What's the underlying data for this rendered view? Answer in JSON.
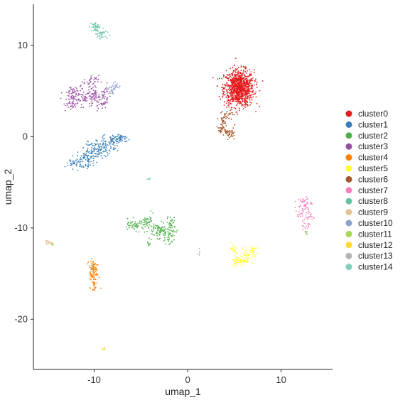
{
  "chart_data": {
    "type": "scatter",
    "xlabel": "umap_1",
    "ylabel": "umap_2",
    "xlim": [
      -16.5,
      15.5
    ],
    "ylim": [
      -25.5,
      14.5
    ],
    "xticks": [
      -10,
      0,
      10
    ],
    "yticks": [
      10,
      0,
      -10,
      -20
    ],
    "grid": false,
    "legend_position": "right",
    "series": [
      {
        "name": "cluster0",
        "color": "#E41A1C",
        "blobs": [
          {
            "cx": 5.5,
            "cy": 5.3,
            "sx": 0.8,
            "sy": 1.0,
            "n": 900
          }
        ],
        "label_points": []
      },
      {
        "name": "cluster1",
        "color": "#377EB8",
        "blobs": [
          {
            "cx": -12.0,
            "cy": -2.9,
            "sx": 0.5,
            "sy": 0.3,
            "n": 40
          },
          {
            "cx": -10.8,
            "cy": -2.3,
            "sx": 0.5,
            "sy": 0.5,
            "n": 60
          },
          {
            "cx": -9.8,
            "cy": -1.6,
            "sx": 0.6,
            "sy": 0.5,
            "n": 70
          },
          {
            "cx": -8.8,
            "cy": -1.0,
            "sx": 0.5,
            "sy": 0.5,
            "n": 60
          },
          {
            "cx": -7.8,
            "cy": -0.4,
            "sx": 0.4,
            "sy": 0.4,
            "n": 50
          },
          {
            "cx": -7.1,
            "cy": -0.2,
            "sx": 0.3,
            "sy": 0.2,
            "n": 30
          }
        ]
      },
      {
        "name": "cluster2",
        "color": "#4DAF4A",
        "blobs": [
          {
            "cx": -5.5,
            "cy": -9.7,
            "sx": 0.8,
            "sy": 0.3,
            "n": 60
          },
          {
            "cx": -4.2,
            "cy": -9.3,
            "sx": 0.3,
            "sy": 0.4,
            "n": 30
          },
          {
            "cx": -3.0,
            "cy": -10.3,
            "sx": 0.6,
            "sy": 0.4,
            "n": 70
          },
          {
            "cx": -2.0,
            "cy": -10.7,
            "sx": 0.4,
            "sy": 0.5,
            "n": 50
          },
          {
            "cx": -1.8,
            "cy": -9.3,
            "sx": 0.2,
            "sy": 0.3,
            "n": 20
          },
          {
            "cx": -4.1,
            "cy": -11.6,
            "sx": 0.1,
            "sy": 0.3,
            "n": 10
          }
        ]
      },
      {
        "name": "cluster3",
        "color": "#984EA3",
        "blobs": [
          {
            "cx": -12.3,
            "cy": 4.8,
            "sx": 0.5,
            "sy": 0.4,
            "n": 50
          },
          {
            "cx": -12.5,
            "cy": 3.6,
            "sx": 0.4,
            "sy": 0.4,
            "n": 40
          },
          {
            "cx": -10.3,
            "cy": 6.1,
            "sx": 0.4,
            "sy": 0.3,
            "n": 30
          },
          {
            "cx": -10.2,
            "cy": 4.7,
            "sx": 0.5,
            "sy": 0.5,
            "n": 60
          },
          {
            "cx": -9.5,
            "cy": 3.8,
            "sx": 0.5,
            "sy": 0.4,
            "n": 40
          },
          {
            "cx": -8.7,
            "cy": 4.6,
            "sx": 0.2,
            "sy": 0.6,
            "n": 25
          },
          {
            "cx": -11.3,
            "cy": 4.2,
            "sx": 0.4,
            "sy": 0.3,
            "n": 20
          }
        ]
      },
      {
        "name": "cluster4",
        "color": "#FF7F00",
        "blobs": [
          {
            "cx": -10.1,
            "cy": -14.2,
            "sx": 0.3,
            "sy": 0.5,
            "n": 40
          },
          {
            "cx": -10.0,
            "cy": -15.3,
            "sx": 0.25,
            "sy": 0.6,
            "n": 40
          },
          {
            "cx": -10.0,
            "cy": -16.3,
            "sx": 0.1,
            "sy": 0.3,
            "n": 15
          }
        ]
      },
      {
        "name": "cluster5",
        "color": "#FFFF33",
        "blobs": [
          {
            "cx": 5.6,
            "cy": -13.6,
            "sx": 0.5,
            "sy": 0.3,
            "n": 60
          },
          {
            "cx": 6.4,
            "cy": -12.9,
            "sx": 0.5,
            "sy": 0.3,
            "n": 35
          },
          {
            "cx": 4.9,
            "cy": -12.4,
            "sx": 0.2,
            "sy": 0.4,
            "n": 20
          },
          {
            "cx": 7.0,
            "cy": -12.3,
            "sx": 0.3,
            "sy": 0.2,
            "n": 15
          }
        ]
      },
      {
        "name": "cluster6",
        "color": "#A65628",
        "blobs": [
          {
            "cx": 4.2,
            "cy": 2.4,
            "sx": 0.3,
            "sy": 0.3,
            "n": 25
          },
          {
            "cx": 3.7,
            "cy": 1.5,
            "sx": 0.2,
            "sy": 0.3,
            "n": 25
          },
          {
            "cx": 3.8,
            "cy": 0.7,
            "sx": 0.3,
            "sy": 0.2,
            "n": 20
          },
          {
            "cx": 4.4,
            "cy": 0.4,
            "sx": 0.3,
            "sy": 0.2,
            "n": 20
          },
          {
            "cx": 4.7,
            "cy": 0.2,
            "sx": 0.2,
            "sy": 0.3,
            "n": 15
          }
        ]
      },
      {
        "name": "cluster7",
        "color": "#F781BF",
        "blobs": [
          {
            "cx": 12.5,
            "cy": -7.2,
            "sx": 0.4,
            "sy": 0.3,
            "n": 30
          },
          {
            "cx": 12.2,
            "cy": -8.3,
            "sx": 0.4,
            "sy": 0.4,
            "n": 30
          },
          {
            "cx": 12.9,
            "cy": -8.6,
            "sx": 0.3,
            "sy": 0.5,
            "n": 20
          },
          {
            "cx": 12.7,
            "cy": -9.8,
            "sx": 0.2,
            "sy": 0.4,
            "n": 15
          }
        ]
      },
      {
        "name": "cluster8",
        "color": "#66C2A5",
        "blobs": [
          {
            "cx": -9.9,
            "cy": 12.0,
            "sx": 0.3,
            "sy": 0.3,
            "n": 35
          },
          {
            "cx": -9.3,
            "cy": 11.3,
            "sx": 0.3,
            "sy": 0.2,
            "n": 25
          }
        ]
      },
      {
        "name": "cluster9",
        "color": "#E5C494",
        "blobs": [
          {
            "cx": -15.1,
            "cy": -11.5,
            "sx": 0.2,
            "sy": 0.1,
            "n": 12
          },
          {
            "cx": -14.7,
            "cy": -11.7,
            "sx": 0.2,
            "sy": 0.1,
            "n": 10
          }
        ]
      },
      {
        "name": "cluster10",
        "color": "#8DA0CB",
        "blobs": [
          {
            "cx": -8.2,
            "cy": 5.1,
            "sx": 0.3,
            "sy": 0.3,
            "n": 20
          },
          {
            "cx": -7.6,
            "cy": 5.6,
            "sx": 0.2,
            "sy": 0.2,
            "n": 15
          }
        ]
      },
      {
        "name": "cluster11",
        "color": "#A6D854",
        "blobs": [
          {
            "cx": 12.7,
            "cy": -10.6,
            "sx": 0.1,
            "sy": 0.15,
            "n": 6
          },
          {
            "cx": -14.5,
            "cy": -11.8,
            "sx": 0.1,
            "sy": 0.1,
            "n": 4
          }
        ]
      },
      {
        "name": "cluster12",
        "color": "#FFD92F",
        "blobs": [
          {
            "cx": -9.0,
            "cy": -23.3,
            "sx": 0.15,
            "sy": 0.1,
            "n": 8
          }
        ]
      },
      {
        "name": "cluster13",
        "color": "#B3B3B3",
        "blobs": [
          {
            "cx": 1.2,
            "cy": -12.8,
            "sx": 0.08,
            "sy": 0.15,
            "n": 6
          },
          {
            "cx": 12.6,
            "cy": -10.4,
            "sx": 0.08,
            "sy": 0.1,
            "n": 3
          }
        ]
      },
      {
        "name": "cluster14",
        "color": "#7FCDBB",
        "blobs": [
          {
            "cx": -4.2,
            "cy": -4.6,
            "sx": 0.12,
            "sy": 0.06,
            "n": 6
          },
          {
            "cx": -9.5,
            "cy": 11.0,
            "sx": 0.3,
            "sy": 0.1,
            "n": 8
          }
        ]
      }
    ]
  }
}
